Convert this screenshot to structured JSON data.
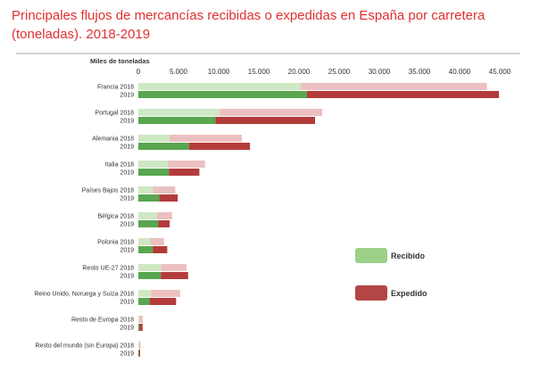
{
  "title": "Principales flujos de mercancías recibidas o expedidas en España por carretera (toneladas). 2018-2019",
  "chart_data": {
    "type": "bar",
    "orientation": "horizontal",
    "stacked": true,
    "xlabel": "Miles de toneladas",
    "xlim": [
      0,
      45000
    ],
    "xticks": [
      0,
      5000,
      10000,
      15000,
      20000,
      25000,
      30000,
      35000,
      40000,
      45000
    ],
    "xtick_labels": [
      "0",
      "5.000",
      "10.000",
      "15.000",
      "20.000",
      "25.000",
      "30.000",
      "35.000",
      "40.000",
      "45.000"
    ],
    "years": [
      "2018",
      "2019"
    ],
    "categories": [
      "Francia",
      "Portugal",
      "Alemania",
      "Italia",
      "Países Bajos",
      "Bélgica",
      "Polonia",
      "Resto UE-27",
      "Reino Unido, Noruega y Suiza",
      "Resto de Europa",
      "Resto del mundo (sin Europa)"
    ],
    "series": [
      {
        "name": "Recibido",
        "values_2018": [
          20200,
          10100,
          3900,
          3700,
          1800,
          2300,
          1500,
          2800,
          1600,
          150,
          80
        ],
        "values_2019": [
          21000,
          9600,
          6300,
          3800,
          2600,
          2500,
          1800,
          2800,
          1400,
          130,
          70
        ]
      },
      {
        "name": "Expedido",
        "values_2018": [
          23200,
          12800,
          9000,
          4600,
          2800,
          1900,
          1700,
          3200,
          3600,
          400,
          200
        ],
        "values_2019": [
          23900,
          12400,
          7600,
          3800,
          2300,
          1400,
          1800,
          3400,
          3300,
          400,
          150
        ]
      }
    ],
    "colors": {
      "recibido_2018": "#cfe8c4",
      "recibido_2019": "#58a64f",
      "expedido_2018": "#ecc0c0",
      "expedido_2019": "#b43b3b",
      "legend_recibido": "#9bd188",
      "legend_expedido": "#b44545"
    },
    "legend": {
      "position": "right",
      "items": [
        "Recibido",
        "Expedido"
      ]
    },
    "grid": false
  }
}
